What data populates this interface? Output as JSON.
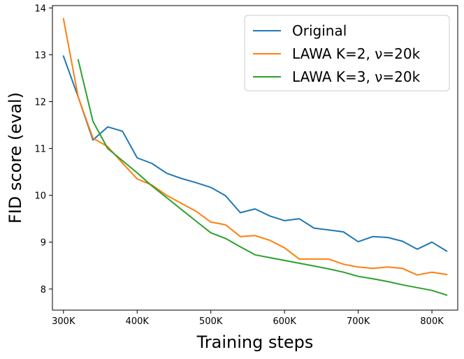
{
  "chart_data": {
    "type": "line",
    "title": "",
    "xlabel": "Training steps",
    "ylabel": "FID score (eval)",
    "xlim": [
      285,
      835
    ],
    "ylim": [
      7.55,
      14.05
    ],
    "xticks": [
      300,
      400,
      500,
      600,
      700,
      800
    ],
    "xtick_labels": [
      "300K",
      "400K",
      "500K",
      "600K",
      "700K",
      "800K"
    ],
    "yticks": [
      8,
      9,
      10,
      11,
      12,
      13,
      14
    ],
    "ytick_labels": [
      "8",
      "9",
      "10",
      "11",
      "12",
      "13",
      "14"
    ],
    "grid": false,
    "legend_position": "top-right",
    "series": [
      {
        "name": "Original",
        "color": "#1f77b4",
        "x": [
          300,
          320,
          340,
          360,
          380,
          400,
          420,
          440,
          460,
          480,
          500,
          520,
          540,
          560,
          580,
          600,
          620,
          640,
          660,
          680,
          700,
          720,
          740,
          760,
          780,
          800,
          820
        ],
        "y": [
          12.97,
          12.1,
          11.18,
          11.46,
          11.37,
          10.8,
          10.68,
          10.47,
          10.36,
          10.27,
          10.17,
          9.99,
          9.63,
          9.71,
          9.56,
          9.46,
          9.5,
          9.3,
          9.26,
          9.22,
          9.01,
          9.12,
          9.1,
          9.02,
          8.85,
          9.0,
          8.81
        ]
      },
      {
        "name": "LAWA K=2, ν=20k",
        "color": "#ff7f0e",
        "x": [
          300,
          320,
          340,
          360,
          380,
          400,
          420,
          440,
          460,
          480,
          500,
          520,
          540,
          560,
          580,
          600,
          620,
          640,
          660,
          680,
          700,
          720,
          740,
          760,
          780,
          800,
          820
        ],
        "y": [
          13.77,
          12.1,
          11.22,
          11.04,
          10.69,
          10.35,
          10.22,
          10.0,
          9.83,
          9.66,
          9.43,
          9.37,
          9.12,
          9.14,
          9.04,
          8.88,
          8.64,
          8.64,
          8.64,
          8.53,
          8.47,
          8.44,
          8.47,
          8.44,
          8.3,
          8.36,
          8.31
        ]
      },
      {
        "name": "LAWA K=3, ν=20k",
        "color": "#2ca02c",
        "x": [
          320,
          340,
          360,
          380,
          400,
          420,
          440,
          460,
          480,
          500,
          520,
          540,
          560,
          580,
          600,
          620,
          640,
          660,
          680,
          700,
          720,
          740,
          760,
          780,
          800,
          820
        ],
        "y": [
          12.89,
          11.58,
          11.0,
          10.74,
          10.48,
          10.2,
          9.95,
          9.7,
          9.45,
          9.2,
          9.08,
          8.9,
          8.73,
          8.67,
          8.61,
          8.55,
          8.49,
          8.43,
          8.36,
          8.27,
          8.22,
          8.16,
          8.09,
          8.03,
          7.97,
          7.87
        ]
      }
    ]
  }
}
